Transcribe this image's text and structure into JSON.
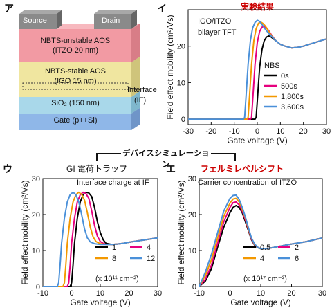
{
  "panel_labels": {
    "a": "ア",
    "b": "イ",
    "c": "ウ",
    "d": "エ"
  },
  "section_title": "デバイスシミュレーション",
  "stack": {
    "source": "Source",
    "drain": "Drain",
    "unstable_1": "NBTS-unstable AOS",
    "unstable_2": "(ITZO 20 nm)",
    "stable_1": "NBTS-stable AOS",
    "stable_2": "(IGO 15 nm)",
    "interface_1": "Interface",
    "interface_2": "(IF)",
    "sio2": "SiO₂ (150 nm)",
    "gate": "Gate (p++Si)",
    "colors": {
      "source": "#8a8a8a",
      "unstable": "#f29aa3",
      "stable": "#f0e6a0",
      "sio2": "#a9d8ea",
      "gate": "#8fb7e8"
    }
  },
  "chart_data": [
    {
      "id": "b",
      "type": "line",
      "title": "実験結果",
      "title_color": "#cc0000",
      "annotation_1": "IGO/ITZO",
      "annotation_2": "bilayer TFT",
      "xlabel": "Gate voltage (V)",
      "ylabel": "Field effect mobility (cm²/Vs)",
      "xlim": [
        -30,
        30
      ],
      "ylim": [
        -1.5,
        30
      ],
      "xticks": [
        -30,
        -20,
        -10,
        0,
        10,
        20,
        30
      ],
      "yticks": [
        0,
        10,
        20
      ],
      "legend_title": "NBS",
      "legend_position": "lower-right",
      "series": [
        {
          "name": "0s",
          "color": "#000000",
          "x": [
            -30,
            -1,
            -0.5,
            0,
            1,
            2,
            3,
            4,
            5,
            6,
            8,
            10,
            12,
            15,
            18,
            20,
            25,
            30
          ],
          "y": [
            0,
            0,
            0.5,
            5,
            14,
            19,
            21.5,
            22.5,
            22.8,
            22.5,
            21.5,
            20.5,
            20,
            19.5,
            19.7,
            20,
            21,
            22
          ]
        },
        {
          "name": "500s",
          "color": "#e6007e",
          "x": [
            -30,
            -3,
            -2.5,
            -2,
            -1,
            0,
            1,
            2,
            3,
            4,
            5,
            6,
            8,
            10,
            12,
            15,
            18,
            20,
            25,
            30
          ],
          "y": [
            0,
            0,
            0.5,
            5,
            15,
            21,
            24,
            25.2,
            25.5,
            25,
            24.2,
            23.2,
            21.5,
            20.5,
            20,
            19.5,
            19.7,
            20,
            21,
            22
          ]
        },
        {
          "name": "1,800s",
          "color": "#f39800",
          "x": [
            -30,
            -4.5,
            -4,
            -3.5,
            -2.5,
            -1.5,
            -0.5,
            0.5,
            1.5,
            2.5,
            3.5,
            5,
            6,
            8,
            10,
            12,
            15,
            18,
            20,
            25,
            30
          ],
          "y": [
            0,
            0,
            0.5,
            5,
            15,
            21.5,
            24.8,
            26.3,
            26.6,
            26.2,
            25.5,
            24,
            23,
            21.5,
            20.5,
            20,
            19.5,
            19.7,
            20,
            21,
            22
          ]
        },
        {
          "name": "3,600s",
          "color": "#4a90d9",
          "x": [
            -30,
            -6,
            -5.5,
            -5,
            -4,
            -3,
            -2,
            -1,
            0,
            1,
            2,
            3.5,
            5,
            6,
            8,
            10,
            12,
            15,
            18,
            20,
            25,
            30
          ],
          "y": [
            0,
            0,
            0.5,
            5,
            15,
            21.5,
            25,
            26.5,
            27.1,
            26.8,
            26,
            24.6,
            23.5,
            22.8,
            21.5,
            20.5,
            20,
            19.5,
            19.7,
            20,
            21,
            22
          ]
        }
      ]
    },
    {
      "id": "c",
      "type": "line",
      "title": "GI 電荷トラップ",
      "annotation_1": "Interface charge at IF",
      "xlabel": "Gate voltage (V)",
      "ylabel": "Field effect mobility (cm²/Vs)",
      "xlim": [
        -10,
        30
      ],
      "ylim": [
        0,
        30
      ],
      "xticks": [
        -10,
        0,
        10,
        20,
        30
      ],
      "yticks": [
        0,
        10,
        20,
        30
      ],
      "legend_unit": "(x 10¹¹ cm⁻²)",
      "legend_position": "lower-right",
      "series": [
        {
          "name": "1",
          "color": "#000000",
          "x": [
            -10,
            -0.5,
            0,
            0.5,
            1,
            2,
            3,
            4,
            5,
            6,
            7,
            8,
            9,
            10,
            11,
            12,
            14,
            16,
            18,
            20,
            25,
            30
          ],
          "y": [
            0,
            0,
            1,
            6,
            12,
            19,
            23.5,
            25.5,
            26.2,
            26,
            25,
            22,
            18,
            15,
            13,
            12,
            11.7,
            11.8,
            12,
            12.3,
            12.9,
            13.5
          ]
        },
        {
          "name": "4",
          "color": "#e6007e",
          "x": [
            -10,
            -1.5,
            -1,
            -0.5,
            0,
            1,
            2,
            3,
            4,
            5,
            6,
            7,
            8,
            9,
            10,
            11,
            12,
            14,
            16,
            18,
            20,
            25,
            30
          ],
          "y": [
            0,
            0,
            1,
            6,
            12,
            19,
            23.5,
            25.5,
            26.2,
            25.8,
            24.5,
            21,
            17,
            14,
            12.5,
            12,
            11.7,
            11.7,
            11.8,
            12,
            12.3,
            12.9,
            13.5
          ]
        },
        {
          "name": "8",
          "color": "#f39800",
          "x": [
            -10,
            -3,
            -2.5,
            -2,
            -1.5,
            -0.5,
            0.5,
            1.5,
            2.5,
            3.5,
            4.5,
            5.5,
            6.5,
            7.5,
            8.5,
            10,
            12,
            14,
            16,
            18,
            20,
            25,
            30
          ],
          "y": [
            0,
            0,
            1,
            6,
            12,
            19,
            23.5,
            25.5,
            26.2,
            25.6,
            24,
            20.5,
            16.5,
            13.8,
            12.5,
            11.9,
            11.7,
            11.7,
            11.8,
            12,
            12.3,
            12.9,
            13.5
          ]
        },
        {
          "name": "12",
          "color": "#4a90d9",
          "x": [
            -10,
            -5,
            -4.5,
            -4,
            -3.5,
            -2.5,
            -1.5,
            -0.5,
            0.5,
            1.5,
            2.5,
            3.5,
            4.5,
            5.5,
            6.5,
            8,
            10,
            12,
            14,
            16,
            18,
            20,
            25,
            30
          ],
          "y": [
            0,
            0,
            1,
            6,
            12,
            19,
            23.5,
            25.5,
            26.2,
            25.5,
            23.5,
            20,
            16,
            13.5,
            12.4,
            11.9,
            11.7,
            11.7,
            11.7,
            11.8,
            12,
            12.3,
            12.9,
            13.5
          ]
        }
      ]
    },
    {
      "id": "d",
      "type": "line",
      "title": "フェルミレベルシフト",
      "title_color": "#cc0000",
      "annotation_1": "Carrier concentration of ITZO",
      "xlabel": "Gate voltage (V)",
      "ylabel": "Field effect mobility (cm²/Vs)",
      "xlim": [
        -10,
        30
      ],
      "ylim": [
        0,
        30
      ],
      "xticks": [
        -10,
        0,
        10,
        20,
        30
      ],
      "yticks": [
        0,
        10,
        20,
        30
      ],
      "legend_unit": "(x 10¹⁷ cm⁻³)",
      "legend_position": "lower-right",
      "series": [
        {
          "name": "0.5",
          "color": "#000000",
          "x": [
            -10,
            -8,
            -6,
            -4,
            -2,
            0,
            1,
            2,
            3,
            4,
            5,
            6,
            7,
            8,
            9,
            10,
            12,
            15,
            20,
            25,
            30
          ],
          "y": [
            0,
            1.5,
            5,
            11,
            16.5,
            20.5,
            22,
            22.5,
            22,
            20.5,
            18,
            15.5,
            13,
            11.5,
            10.8,
            10.5,
            10.5,
            11,
            11.8,
            12.5,
            13.5
          ]
        },
        {
          "name": "2",
          "color": "#e6007e",
          "x": [
            -10,
            -8,
            -6,
            -4,
            -2,
            0,
            1,
            2,
            3,
            4,
            5,
            6,
            7,
            8,
            9,
            10,
            12,
            15,
            20,
            25,
            30
          ],
          "y": [
            0,
            2,
            6,
            12,
            18,
            22,
            23.3,
            23.5,
            22.7,
            21,
            18.5,
            15.8,
            13.2,
            11.6,
            10.9,
            10.5,
            10.5,
            11,
            11.8,
            12.5,
            13.5
          ]
        },
        {
          "name": "4",
          "color": "#f39800",
          "x": [
            -10,
            -8,
            -6,
            -4,
            -2,
            0,
            1,
            2,
            3,
            4,
            5,
            6,
            7,
            8,
            9,
            10,
            12,
            15,
            20,
            25,
            30
          ],
          "y": [
            0,
            3,
            7.5,
            13.5,
            19.5,
            23.2,
            24.3,
            24.5,
            23.5,
            21.5,
            19,
            16,
            13.4,
            11.7,
            10.9,
            10.5,
            10.5,
            11,
            11.8,
            12.5,
            13.5
          ]
        },
        {
          "name": "6",
          "color": "#4a90d9",
          "x": [
            -10,
            -8,
            -6,
            -4,
            -2,
            0,
            1,
            2,
            3,
            4,
            5,
            6,
            7,
            8,
            9,
            10,
            12,
            15,
            20,
            25,
            30
          ],
          "y": [
            0,
            4,
            9,
            15,
            21,
            24.5,
            25.3,
            25.4,
            24.2,
            22,
            19.3,
            16.3,
            13.5,
            11.8,
            10.9,
            10.5,
            10.5,
            11,
            11.8,
            12.5,
            13.5
          ]
        }
      ]
    }
  ]
}
